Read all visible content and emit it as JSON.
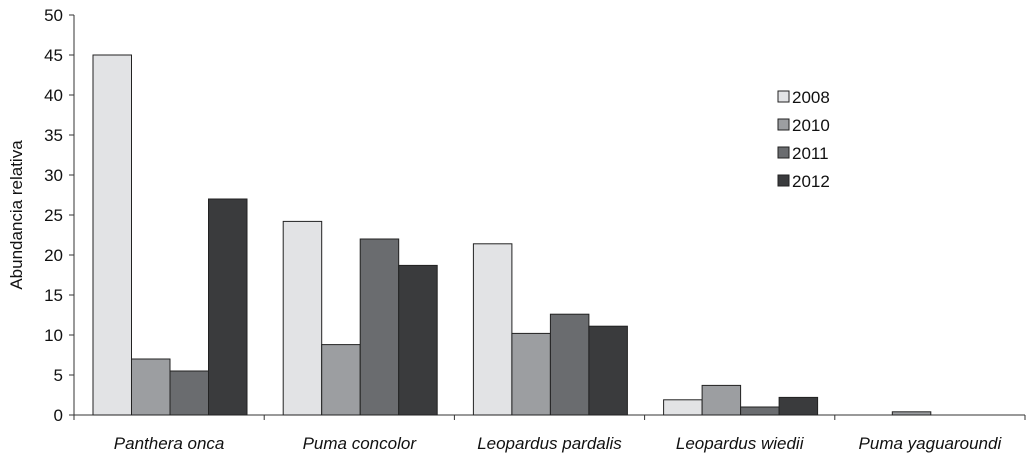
{
  "chart_data": {
    "type": "bar",
    "title": "",
    "xlabel": "",
    "ylabel": "Abundancia relativa",
    "ylim": [
      0,
      50
    ],
    "y_ticks": [
      0,
      5,
      10,
      15,
      20,
      25,
      30,
      35,
      40,
      45,
      50
    ],
    "grid": false,
    "legend_position": "right",
    "categories": [
      "Panthera onca",
      "Puma concolor",
      "Leopardus pardalis",
      "Leopardus wiedii",
      "Puma yaguaroundi"
    ],
    "series": [
      {
        "name": "2008",
        "color": "#e2e3e5",
        "values": [
          45.0,
          24.2,
          21.4,
          1.9,
          0
        ]
      },
      {
        "name": "2010",
        "color": "#9c9ea1",
        "values": [
          7.0,
          8.8,
          10.2,
          3.7,
          0.4
        ]
      },
      {
        "name": "2011",
        "color": "#6a6c6f",
        "values": [
          5.5,
          22.0,
          12.6,
          1.0,
          0
        ]
      },
      {
        "name": "2012",
        "color": "#3a3b3d",
        "values": [
          27.0,
          18.7,
          11.1,
          2.2,
          0
        ]
      }
    ]
  }
}
